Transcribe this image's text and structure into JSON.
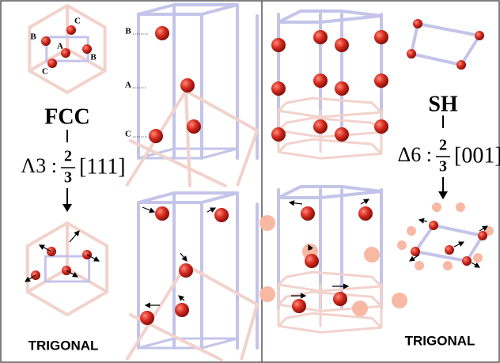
{
  "left": {
    "cube_labels": [
      "C",
      "B",
      "A",
      "B",
      "C"
    ],
    "column_labels": [
      "B",
      "A",
      "C"
    ],
    "structure": "FCC",
    "mode": {
      "label": "Λ3 :",
      "numerator": "2",
      "denominator": "3",
      "direction": "[111]"
    },
    "result": "TRIGONAL"
  },
  "right": {
    "structure": "SH",
    "mode": {
      "label": "Δ6 :",
      "numerator": "2",
      "denominator": "3",
      "direction": "[001]"
    },
    "result": "TRIGONAL"
  }
}
